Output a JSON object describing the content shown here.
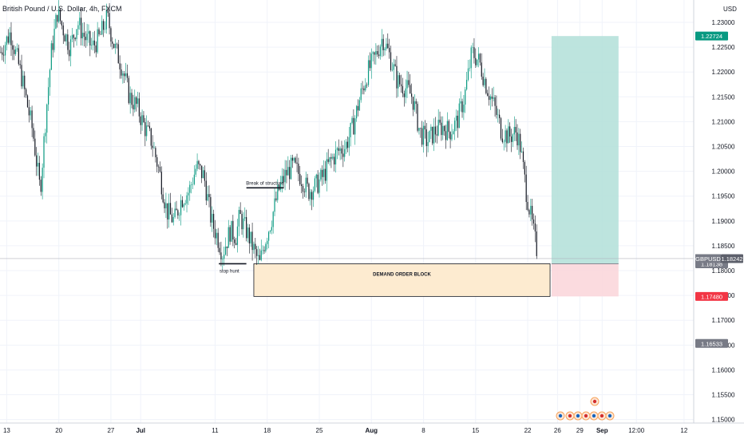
{
  "chart_data": {
    "type": "candlestick",
    "title": "British Pound / U.S. Dollar, 4h, FXCM",
    "currency_label": "USD",
    "y_ticks": [
      "1.23000",
      "1.22500",
      "1.22000",
      "1.21500",
      "1.21000",
      "1.20500",
      "1.20000",
      "1.19500",
      "1.19000",
      "1.18500",
      "1.18000",
      "1.17500",
      "1.17000",
      "1.16500",
      "1.16000",
      "1.15500",
      "1.15000"
    ],
    "ylim": [
      1.1493,
      1.2345
    ],
    "x_ticks": [
      {
        "label": "13",
        "day": 13
      },
      {
        "label": "20",
        "day": 20
      },
      {
        "label": "27",
        "day": 27
      },
      {
        "label": "Jul",
        "day": 31
      },
      {
        "label": "11",
        "day": 41
      },
      {
        "label": "18",
        "day": 48
      },
      {
        "label": "25",
        "day": 55
      },
      {
        "label": "Aug",
        "day": 62
      },
      {
        "label": "8",
        "day": 69
      },
      {
        "label": "15",
        "day": 76
      },
      {
        "label": "22",
        "day": 83
      },
      {
        "label": "26",
        "day": 87
      },
      {
        "label": "29",
        "day": 90
      },
      {
        "label": "Sep",
        "day": 93
      },
      {
        "label": "12:00",
        "day": 97.6
      },
      {
        "label": "12",
        "day": 104
      }
    ],
    "xlim": [
      12.1,
      105.3
    ],
    "price_path": [
      [
        12.2,
        1.224
      ],
      [
        13.5,
        1.228
      ],
      [
        15,
        1.219
      ],
      [
        16.5,
        1.208
      ],
      [
        17.5,
        1.196
      ],
      [
        18.3,
        1.212
      ],
      [
        19,
        1.224
      ],
      [
        19.8,
        1.232
      ],
      [
        20.5,
        1.229
      ],
      [
        21.5,
        1.225
      ],
      [
        22.5,
        1.23
      ],
      [
        23.5,
        1.227
      ],
      [
        24.5,
        1.225
      ],
      [
        25.5,
        1.227
      ],
      [
        26.5,
        1.231
      ],
      [
        27.5,
        1.225
      ],
      [
        28.5,
        1.221
      ],
      [
        29.5,
        1.215
      ],
      [
        30.5,
        1.213
      ],
      [
        31.5,
        1.209
      ],
      [
        32.5,
        1.206
      ],
      [
        33.5,
        1.2
      ],
      [
        34.5,
        1.192
      ],
      [
        35.5,
        1.19
      ],
      [
        36.5,
        1.1945
      ],
      [
        37.5,
        1.196
      ],
      [
        38.5,
        1.201
      ],
      [
        39.5,
        1.199
      ],
      [
        40.5,
        1.19
      ],
      [
        41.5,
        1.186
      ],
      [
        42,
        1.1835
      ],
      [
        43,
        1.188
      ],
      [
        43.8,
        1.187
      ],
      [
        44.3,
        1.191
      ],
      [
        45.5,
        1.187
      ],
      [
        46.5,
        1.183
      ],
      [
        47,
        1.1813
      ],
      [
        47.5,
        1.185
      ],
      [
        48.5,
        1.19
      ],
      [
        49.5,
        1.196
      ],
      [
        50.5,
        1.1995
      ],
      [
        51.5,
        1.201
      ],
      [
        52.5,
        1.199
      ],
      [
        53.5,
        1.196
      ],
      [
        54.5,
        1.197
      ],
      [
        55.5,
        1.199
      ],
      [
        56.5,
        1.202
      ],
      [
        57.5,
        1.204
      ],
      [
        58.5,
        1.205
      ],
      [
        59.5,
        1.209
      ],
      [
        60.5,
        1.215
      ],
      [
        61.5,
        1.22
      ],
      [
        62.5,
        1.223
      ],
      [
        63.5,
        1.227
      ],
      [
        64.5,
        1.223
      ],
      [
        65.5,
        1.218
      ],
      [
        66.5,
        1.217
      ],
      [
        67.5,
        1.215
      ],
      [
        68.5,
        1.208
      ],
      [
        69.5,
        1.206
      ],
      [
        70.5,
        1.208
      ],
      [
        71.5,
        1.209
      ],
      [
        72.5,
        1.208
      ],
      [
        73.5,
        1.21
      ],
      [
        74.5,
        1.215
      ],
      [
        75.5,
        1.224
      ],
      [
        76.5,
        1.222
      ],
      [
        77.5,
        1.217
      ],
      [
        78.5,
        1.213
      ],
      [
        79.5,
        1.208
      ],
      [
        80.5,
        1.207
      ],
      [
        81.5,
        1.208
      ],
      [
        82,
        1.205
      ],
      [
        82.8,
        1.196
      ],
      [
        83.5,
        1.19
      ],
      [
        84.3,
        1.1835
      ]
    ],
    "last_price": 1.18242,
    "annotations": {
      "break_of_structure": {
        "text": "Break of structure",
        "level": 1.19667,
        "day_start": 45.2,
        "day_end": 50.2
      },
      "stop_hunt": {
        "text": "stop hunt",
        "level": 1.18138,
        "day_start": 41.5,
        "day_end": 45.2
      },
      "demand_zone": {
        "text": "DEMAND ORDER BLOCK",
        "top": 1.18138,
        "bottom": 1.1748,
        "day_start": 46.2,
        "day_end": 86
      }
    },
    "position": {
      "entry": 1.18138,
      "stop": 1.1748,
      "target": 1.22724,
      "day_start": 86.2,
      "day_end": 95.2
    },
    "price_tags": [
      {
        "text": "1.22724",
        "value": 1.22724,
        "color": "#089981"
      },
      {
        "text": "1.18242",
        "value": 1.18242,
        "color": "#5d606b"
      },
      {
        "text": "1.18138",
        "value": 1.18138,
        "color": "#787b86"
      },
      {
        "text": "1.17480",
        "value": 1.1748,
        "color": "#f23645"
      },
      {
        "text": "1.16533",
        "value": 1.16533,
        "color": "#787b86"
      }
    ],
    "symbol_tag": "GBPUSD",
    "colors": {
      "up": "#089981",
      "down": "#131722",
      "target_zone": "#b2dfd8",
      "stop_zone": "#fbd7dc",
      "demand_zone": "#fdebd0"
    }
  }
}
